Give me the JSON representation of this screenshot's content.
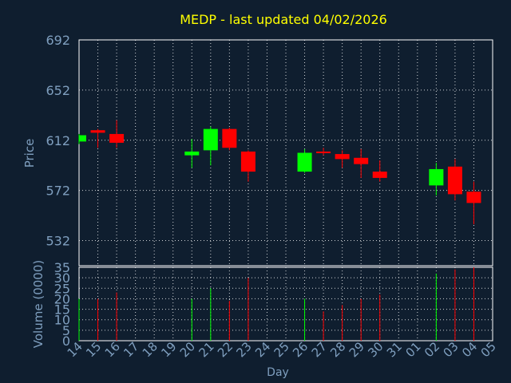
{
  "chart_data": {
    "type": "candlestick",
    "title": "MEDP - last updated 04/02/2026",
    "xlabel": "Day",
    "ylabel": "Price",
    "volume_label": "Volume (0000)",
    "price_ylim": [
      512,
      692
    ],
    "price_ticks": [
      "692",
      "652",
      "612",
      "572",
      "532"
    ],
    "volume_ylim": [
      0,
      35
    ],
    "volume_ticks": [
      "35",
      "30",
      "25",
      "20",
      "15",
      "10",
      "5",
      "0"
    ],
    "grid": true,
    "colors": {
      "up": "#00ff00",
      "down": "#ff0000",
      "background": "#0f1e2f",
      "grid": "#ffffff",
      "text": "#7f9fbf",
      "title": "#ffff00"
    },
    "days": [
      "14",
      "15",
      "16",
      "17",
      "18",
      "19",
      "20",
      "21",
      "22",
      "23",
      "24",
      "25",
      "26",
      "27",
      "28",
      "29",
      "30",
      "31",
      "01",
      "02",
      "03",
      "04",
      "05"
    ],
    "candles": [
      {
        "day": "14",
        "open": 611,
        "close": 616,
        "high": 617,
        "low": 609,
        "volume": 20
      },
      {
        "day": "15",
        "open": 620,
        "close": 618,
        "high": 621,
        "low": 606,
        "volume": 20
      },
      {
        "day": "16",
        "open": 617,
        "close": 610,
        "high": 628,
        "low": 606,
        "volume": 23
      },
      {
        "day": "20",
        "open": 600,
        "close": 603,
        "high": 613,
        "low": 590,
        "volume": 20
      },
      {
        "day": "21",
        "open": 604,
        "close": 621,
        "high": 623,
        "low": 592,
        "volume": 25
      },
      {
        "day": "22",
        "open": 621,
        "close": 606,
        "high": 622,
        "low": 604,
        "volume": 19
      },
      {
        "day": "23",
        "open": 603,
        "close": 587,
        "high": 604,
        "low": 579,
        "volume": 30
      },
      {
        "day": "26",
        "open": 587,
        "close": 602,
        "high": 605,
        "low": 586,
        "volume": 20
      },
      {
        "day": "27",
        "open": 603,
        "close": 602,
        "high": 606,
        "low": 600,
        "volume": 14
      },
      {
        "day": "28",
        "open": 601,
        "close": 597,
        "high": 604,
        "low": 590,
        "volume": 17
      },
      {
        "day": "29",
        "open": 598,
        "close": 593,
        "high": 605,
        "low": 582,
        "volume": 20
      },
      {
        "day": "30",
        "open": 587,
        "close": 582,
        "high": 596,
        "low": 579,
        "volume": 22
      },
      {
        "day": "02",
        "open": 576,
        "close": 589,
        "high": 594,
        "low": 568,
        "volume": 32
      },
      {
        "day": "03",
        "open": 591,
        "close": 569,
        "high": 597,
        "low": 564,
        "volume": 34
      },
      {
        "day": "04",
        "open": 571,
        "close": 562,
        "high": 579,
        "low": 545,
        "volume": 35
      }
    ]
  }
}
